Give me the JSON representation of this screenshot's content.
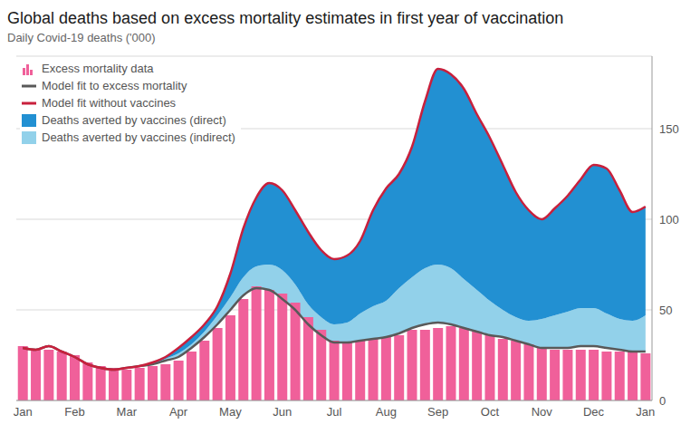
{
  "chart_data": {
    "type": "area",
    "title": "Global deaths based on excess mortality estimates in first year of vaccination",
    "subtitle": "Daily Covid-19 deaths ('000)",
    "categories": [
      "Jan",
      null,
      null,
      null,
      "Feb",
      null,
      null,
      null,
      "Mar",
      null,
      null,
      null,
      "Apr",
      null,
      null,
      null,
      "May",
      null,
      null,
      null,
      "Jun",
      null,
      null,
      null,
      "Jul",
      null,
      null,
      null,
      "Aug",
      null,
      null,
      null,
      "Sep",
      null,
      null,
      null,
      "Oct",
      null,
      null,
      null,
      "Nov",
      null,
      null,
      null,
      "Dec",
      null,
      null,
      null,
      "Jan"
    ],
    "ylim": [
      0,
      190
    ],
    "yticks": [
      0,
      50,
      100,
      150
    ],
    "grid": true,
    "stacked": true,
    "series": [
      {
        "name": "Excess mortality data",
        "type": "bar",
        "color": "#f0609a",
        "values": [
          30,
          28,
          28,
          27,
          25,
          21,
          19,
          18,
          17,
          18,
          19,
          20,
          22,
          27,
          33,
          40,
          47,
          56,
          63,
          61,
          59,
          54,
          46,
          39,
          33,
          32,
          33,
          34,
          35,
          36,
          39,
          39,
          40,
          41,
          40,
          38,
          36,
          34,
          33,
          31,
          29,
          28,
          28,
          28,
          28,
          27,
          27,
          27,
          26
        ]
      },
      {
        "name": "Model fit to excess mortality",
        "type": "line",
        "color": "#595959",
        "values": [
          29,
          28,
          30,
          27,
          24,
          20,
          18,
          17,
          18,
          19,
          20,
          22,
          24,
          29,
          35,
          42,
          50,
          58,
          62,
          61,
          56,
          50,
          42,
          36,
          32,
          32,
          33,
          34,
          35,
          37,
          40,
          42,
          43,
          42,
          40,
          38,
          36,
          35,
          33,
          31,
          29,
          29,
          29,
          30,
          30,
          29,
          28,
          27,
          27
        ]
      },
      {
        "name": "Model fit without vaccines",
        "type": "line",
        "color": "#c8203c",
        "values": [
          29,
          28,
          30,
          27,
          24,
          20,
          18,
          17,
          18,
          19,
          21,
          24,
          29,
          35,
          42,
          52,
          70,
          95,
          112,
          120,
          116,
          105,
          93,
          83,
          78,
          80,
          88,
          105,
          117,
          125,
          140,
          165,
          183,
          180,
          172,
          158,
          145,
          130,
          115,
          105,
          100,
          106,
          113,
          122,
          130,
          128,
          116,
          104,
          107
        ]
      },
      {
        "name": "Deaths averted by vaccines (direct)",
        "type": "area",
        "color": "#2290d2",
        "values": [
          0,
          0,
          0,
          0,
          0,
          0,
          0,
          0,
          0,
          0,
          1,
          1,
          3,
          4,
          4,
          5,
          13,
          27,
          38,
          45,
          44,
          41,
          40,
          37,
          36,
          37,
          40,
          53,
          62,
          63,
          72,
          92,
          108,
          107,
          105,
          97,
          90,
          80,
          69,
          61,
          55,
          59,
          64,
          71,
          79,
          80,
          71,
          60,
          60
        ]
      },
      {
        "name": "Deaths averted by vaccines (indirect)",
        "type": "area",
        "color": "#92d1ea",
        "values": [
          0,
          0,
          0,
          0,
          0,
          0,
          0,
          0,
          0,
          0,
          0,
          1,
          2,
          2,
          3,
          5,
          7,
          10,
          12,
          14,
          16,
          14,
          11,
          10,
          10,
          11,
          15,
          18,
          20,
          25,
          28,
          31,
          32,
          31,
          27,
          23,
          19,
          15,
          13,
          13,
          16,
          18,
          20,
          21,
          21,
          19,
          17,
          17,
          20
        ]
      }
    ]
  }
}
